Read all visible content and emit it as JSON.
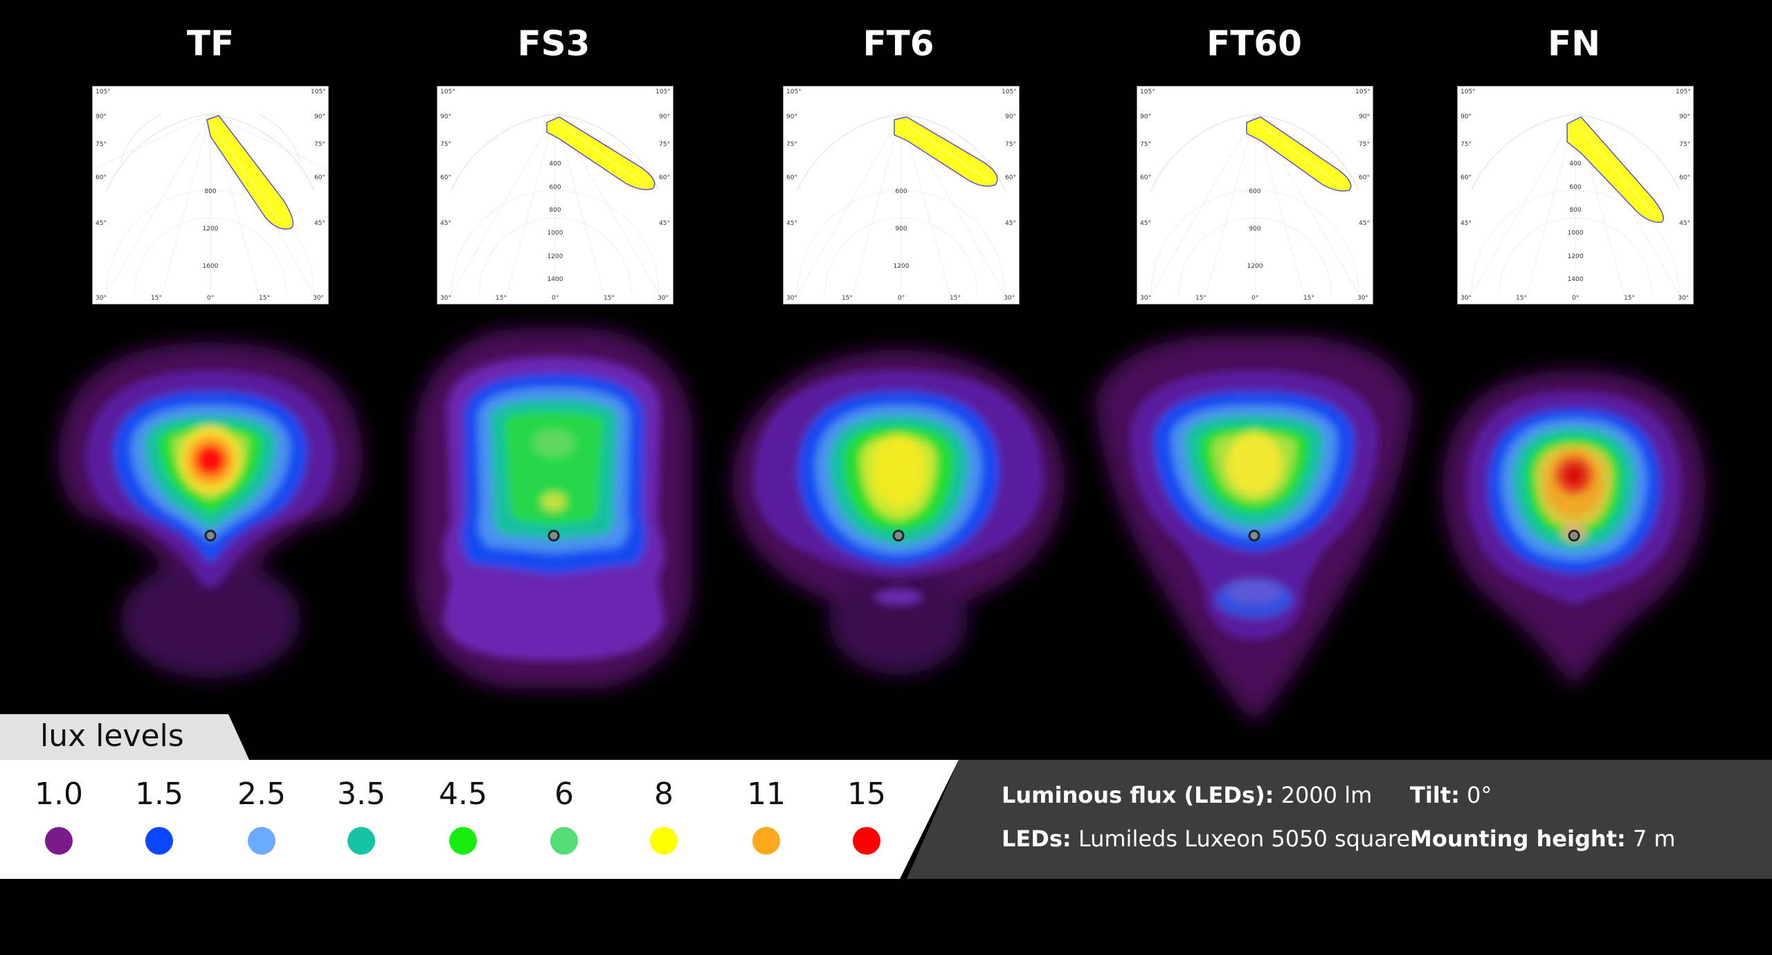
{
  "columns": [
    {
      "title": "TF",
      "radial": [
        "800",
        "1200",
        "1600"
      ]
    },
    {
      "title": "FS3",
      "radial": [
        "400",
        "600",
        "800",
        "1000",
        "1200",
        "1400"
      ]
    },
    {
      "title": "FT6",
      "radial": [
        "600",
        "900",
        "1200"
      ]
    },
    {
      "title": "FT60",
      "radial": [
        "600",
        "900",
        "1200"
      ]
    },
    {
      "title": "FN",
      "radial": [
        "400",
        "600",
        "800",
        "1000",
        "1200",
        "1400"
      ]
    }
  ],
  "polar_angle_labels": {
    "left": [
      "105°",
      "90°",
      "75°",
      "60°",
      "45°"
    ],
    "right": [
      "105°",
      "90°",
      "75°",
      "60°",
      "45°"
    ],
    "bottom": [
      "30°",
      "15°",
      "0°",
      "15°",
      "30°"
    ]
  },
  "legend": {
    "title": "lux levels",
    "levels": [
      {
        "value": "1.0",
        "color": "#7a1a8c"
      },
      {
        "value": "1.5",
        "color": "#0a48ff"
      },
      {
        "value": "2.5",
        "color": "#6aaaff"
      },
      {
        "value": "3.5",
        "color": "#14c4a4"
      },
      {
        "value": "4.5",
        "color": "#16ee10"
      },
      {
        "value": "6",
        "color": "#55dd77"
      },
      {
        "value": "8",
        "color": "#ffff00"
      },
      {
        "value": "11",
        "color": "#ffa81c"
      },
      {
        "value": "15",
        "color": "#ff0000"
      }
    ]
  },
  "info": {
    "flux_label": "Luminous flux (LEDs):",
    "flux_value": "2000 lm",
    "leds_label": "LEDs:",
    "leds_value": "Lumileds Luxeon 5050 square",
    "tilt_label": "Tilt:",
    "tilt_value": "0°",
    "height_label": "Mounting height:",
    "height_value": "7 m"
  }
}
